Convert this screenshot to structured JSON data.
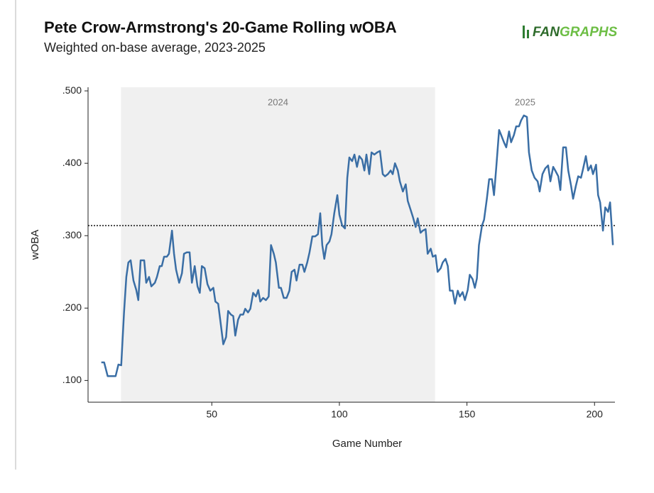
{
  "chart_data": {
    "type": "line",
    "title": "Pete Crow-Armstrong's 20-Game Rolling wOBA",
    "subtitle": "Weighted on-base average, 2023-2025",
    "logo": [
      "FAN",
      "GRAPHS"
    ],
    "x_label": "Game Number",
    "y_label": "wOBA",
    "color": "#3a6ea5",
    "xlim": [
      1.5,
      208
    ],
    "ylim": [
      0.07,
      0.505
    ],
    "xticks": [
      50,
      100,
      150,
      200
    ],
    "yticks": [
      {
        "value": 0.1,
        "label": ".100"
      },
      {
        "value": 0.2,
        "label": ".200"
      },
      {
        "value": 0.3,
        "label": ".300"
      },
      {
        "value": 0.4,
        "label": ".400"
      },
      {
        "value": 0.5,
        "label": ".500"
      }
    ],
    "reference_line": 0.314,
    "regions": [
      {
        "label": "2024",
        "x": [
          14.4,
          137.5
        ]
      }
    ],
    "annotations": [
      {
        "label": "2025",
        "x": 172.8
      }
    ],
    "x": [
      6.7,
      7.8,
      9.2,
      10.6,
      12.3,
      13.4,
      14.5,
      15.6,
      16.5,
      17.3,
      18.2,
      19.3,
      20.4,
      21.2,
      22.1,
      23.5,
      24.3,
      25.4,
      26.3,
      27.7,
      28.5,
      29.6,
      30.4,
      31.3,
      32.4,
      33.2,
      34.4,
      35.2,
      36.0,
      37.2,
      38.3,
      39.1,
      40.2,
      41.3,
      42.2,
      43.3,
      44.4,
      45.3,
      46.1,
      47.2,
      48.3,
      49.4,
      50.6,
      51.4,
      52.5,
      53.4,
      54.5,
      55.6,
      56.4,
      57.5,
      58.4,
      59.2,
      60.3,
      61.2,
      62.3,
      63.1,
      64.2,
      65.1,
      66.2,
      67.3,
      68.2,
      69.0,
      70.1,
      71.2,
      72.3,
      73.2,
      74.3,
      75.1,
      76.3,
      77.1,
      78.2,
      79.3,
      80.4,
      81.3,
      82.4,
      83.2,
      84.4,
      85.5,
      86.3,
      87.4,
      88.3,
      89.4,
      90.5,
      91.6,
      92.5,
      93.3,
      94.1,
      95.0,
      96.1,
      96.9,
      98.0,
      99.2,
      100.0,
      101.1,
      102.2,
      103.1,
      103.9,
      105.0,
      105.9,
      106.9,
      107.8,
      108.9,
      109.8,
      110.6,
      111.7,
      112.6,
      113.7,
      114.8,
      115.9,
      117.0,
      117.9,
      119.0,
      120.1,
      120.9,
      121.8,
      122.9,
      123.7,
      124.9,
      126.0,
      126.8,
      127.9,
      128.8,
      129.9,
      130.7,
      131.8,
      132.7,
      133.8,
      134.6,
      135.8,
      136.6,
      137.7,
      138.5,
      139.7,
      140.5,
      141.6,
      142.5,
      143.3,
      144.4,
      145.3,
      146.4,
      147.2,
      148.3,
      149.2,
      150.3,
      151.1,
      152.2,
      153.1,
      153.9,
      154.7,
      155.9,
      156.7,
      157.8,
      158.7,
      159.8,
      160.6,
      161.5,
      162.6,
      163.4,
      164.5,
      165.4,
      166.5,
      167.3,
      168.4,
      169.3,
      170.4,
      171.2,
      172.3,
      173.5,
      174.3,
      175.4,
      176.5,
      177.7,
      178.5,
      179.6,
      180.7,
      181.8,
      182.7,
      183.8,
      184.6,
      185.8,
      186.6,
      187.7,
      188.8,
      189.7,
      190.8,
      191.6,
      192.7,
      193.6,
      194.7,
      195.5,
      196.6,
      197.5,
      198.6,
      199.4,
      200.6,
      201.4,
      202.2,
      203.3,
      204.2,
      205.3,
      206.1,
      207.2
    ],
    "values": [
      0.125,
      0.125,
      0.106,
      0.106,
      0.106,
      0.122,
      0.121,
      0.194,
      0.243,
      0.263,
      0.266,
      0.238,
      0.225,
      0.211,
      0.266,
      0.266,
      0.235,
      0.243,
      0.23,
      0.235,
      0.243,
      0.258,
      0.258,
      0.271,
      0.271,
      0.275,
      0.307,
      0.275,
      0.253,
      0.235,
      0.248,
      0.275,
      0.277,
      0.277,
      0.235,
      0.258,
      0.23,
      0.221,
      0.258,
      0.255,
      0.233,
      0.224,
      0.228,
      0.209,
      0.206,
      0.181,
      0.15,
      0.16,
      0.196,
      0.191,
      0.189,
      0.162,
      0.184,
      0.191,
      0.191,
      0.199,
      0.194,
      0.199,
      0.221,
      0.216,
      0.225,
      0.209,
      0.214,
      0.211,
      0.216,
      0.287,
      0.275,
      0.263,
      0.228,
      0.228,
      0.214,
      0.214,
      0.224,
      0.25,
      0.253,
      0.238,
      0.26,
      0.26,
      0.25,
      0.263,
      0.277,
      0.299,
      0.299,
      0.302,
      0.331,
      0.287,
      0.268,
      0.287,
      0.292,
      0.302,
      0.331,
      0.356,
      0.329,
      0.314,
      0.31,
      0.38,
      0.408,
      0.403,
      0.412,
      0.395,
      0.41,
      0.405,
      0.39,
      0.412,
      0.385,
      0.415,
      0.412,
      0.415,
      0.417,
      0.385,
      0.382,
      0.385,
      0.39,
      0.385,
      0.4,
      0.39,
      0.375,
      0.361,
      0.371,
      0.348,
      0.336,
      0.326,
      0.312,
      0.324,
      0.304,
      0.307,
      0.309,
      0.275,
      0.282,
      0.271,
      0.273,
      0.25,
      0.255,
      0.263,
      0.268,
      0.258,
      0.224,
      0.224,
      0.206,
      0.224,
      0.216,
      0.222,
      0.211,
      0.225,
      0.246,
      0.24,
      0.228,
      0.241,
      0.287,
      0.314,
      0.322,
      0.351,
      0.378,
      0.378,
      0.356,
      0.395,
      0.446,
      0.439,
      0.429,
      0.422,
      0.444,
      0.429,
      0.439,
      0.451,
      0.451,
      0.459,
      0.466,
      0.464,
      0.415,
      0.39,
      0.38,
      0.375,
      0.361,
      0.385,
      0.393,
      0.397,
      0.375,
      0.395,
      0.39,
      0.382,
      0.363,
      0.422,
      0.422,
      0.39,
      0.369,
      0.351,
      0.369,
      0.382,
      0.38,
      0.392,
      0.41,
      0.39,
      0.397,
      0.385,
      0.398,
      0.356,
      0.346,
      0.307,
      0.339,
      0.333,
      0.346,
      0.287
    ]
  }
}
